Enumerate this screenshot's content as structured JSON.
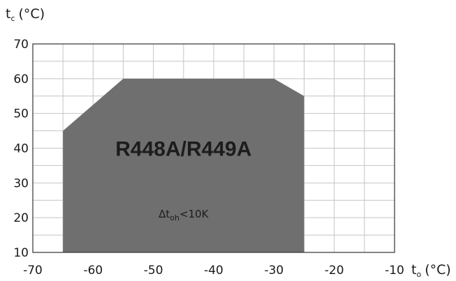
{
  "chart_data": {
    "type": "area",
    "title": "",
    "xlabel": "t",
    "xlabel_sub": "o",
    "xlabel_unit": "(°C)",
    "ylabel": "t",
    "ylabel_sub": "c",
    "ylabel_unit": "(°C)",
    "xlim": [
      -70,
      -10
    ],
    "ylim": [
      10,
      70
    ],
    "x_ticks": [
      -70,
      -60,
      -50,
      -40,
      -30,
      -20,
      -10
    ],
    "y_ticks": [
      10,
      20,
      30,
      40,
      50,
      60,
      70
    ],
    "x_tick_labels": [
      "-70",
      "-60",
      "-50",
      "-40",
      "-30",
      "-20",
      "-10"
    ],
    "y_tick_labels": [
      "10",
      "20",
      "30",
      "40",
      "50",
      "60",
      "70"
    ],
    "x_minor_step": 5,
    "y_minor_step": 5,
    "grid": true,
    "series": [
      {
        "name": "R448A/R449A",
        "color": "#6f6f6f",
        "points": [
          {
            "x": -65,
            "y": 10
          },
          {
            "x": -65,
            "y": 45
          },
          {
            "x": -55,
            "y": 60
          },
          {
            "x": -30,
            "y": 60
          },
          {
            "x": -25,
            "y": 55
          },
          {
            "x": -25,
            "y": 10
          }
        ]
      }
    ],
    "annotations": [
      {
        "text_main": "Δt",
        "text_sub": "oh",
        "text_rest": "<10K",
        "x": -45,
        "y": 21
      }
    ],
    "series_label_position": {
      "x": -45,
      "y": 40
    }
  },
  "colors": {
    "envelope_fill": "#6f6f6f",
    "grid": "#c4c4c4",
    "frame": "#333333",
    "text": "#1a1a1a"
  }
}
